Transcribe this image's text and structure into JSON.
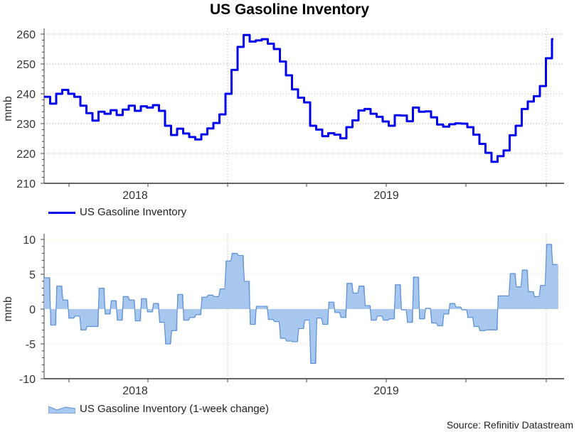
{
  "title": "US Gasoline Inventory",
  "source": "Source: Refinitiv Datastream",
  "colors": {
    "line": "#0000ee",
    "area_fill": "#a7c7ee",
    "area_stroke": "#5b8fd6",
    "grid": "#b0b0a0"
  },
  "chart_data": [
    {
      "type": "line",
      "title": "US Gasoline Inventory",
      "ylabel": "mmb",
      "xlabel": "",
      "ylim": [
        210,
        260
      ],
      "yticks": [
        "210",
        "220",
        "230",
        "240",
        "250",
        "260"
      ],
      "xtick_labels": [
        "2018",
        "2019"
      ],
      "legend": "US Gasoline Inventory",
      "legend_position": "bottom-left",
      "frequency": "weekly",
      "values": [
        239,
        236.7,
        240,
        241.3,
        240,
        239,
        236,
        233.5,
        231,
        234,
        233.3,
        234.5,
        232.9,
        234.7,
        236,
        234.3,
        235.8,
        235.4,
        236.2,
        234.3,
        229.3,
        226.2,
        228.3,
        226.7,
        225.5,
        224.7,
        226.4,
        228.4,
        230.2,
        233.1,
        240,
        248,
        255.7,
        259.7,
        257.5,
        257.9,
        258.3,
        256.8,
        255,
        250.8,
        246.2,
        241.5,
        238.7,
        237.1,
        229.3,
        228,
        225.8,
        226.8,
        226.3,
        225.1,
        228.8,
        231.1,
        234.4,
        234.9,
        233.3,
        232.3,
        230.7,
        229.3,
        232.8,
        232.7,
        230.8,
        235.4,
        234,
        234.1,
        232.1,
        229.7,
        229,
        229.8,
        230.1,
        230,
        228.8,
        226.3,
        223.2,
        220.2,
        217.2,
        219.1,
        221,
        226.1,
        229.3,
        234.9,
        237.4,
        239.2,
        242.6,
        251.9,
        258.3
      ]
    },
    {
      "type": "area",
      "title": "",
      "ylabel": "mmb",
      "xlabel": "",
      "ylim": [
        -10,
        10
      ],
      "yticks": [
        "-10",
        "-5",
        "0",
        "5",
        "10"
      ],
      "xtick_labels": [
        "2018",
        "2019"
      ],
      "legend": "US Gasoline Inventory (1-week change)",
      "legend_position": "bottom-left",
      "frequency": "weekly",
      "values": [
        4.5,
        -2.3,
        3.3,
        1.3,
        -1.3,
        -1,
        -3,
        -2.5,
        -2.5,
        3,
        -0.7,
        1.2,
        -1.6,
        1.8,
        1.3,
        -1.7,
        1.5,
        -0.4,
        0.8,
        -1.9,
        -5,
        -3.1,
        2.1,
        -1.6,
        -1.2,
        -0.8,
        1.7,
        2,
        1.8,
        2.9,
        6.9,
        8,
        7.7,
        4,
        -2.2,
        0.4,
        0.4,
        -1.5,
        -1.8,
        -4.2,
        -4.6,
        -4.7,
        -2.8,
        -1.6,
        -7.8,
        -1.3,
        -2.2,
        1,
        -0.5,
        -1.2,
        3.7,
        2.3,
        3.3,
        0.5,
        -1.6,
        -1,
        -1.6,
        -1.4,
        3.5,
        -0.1,
        -1.9,
        4.6,
        -1.4,
        0.1,
        -2,
        -2.4,
        -0.7,
        0.8,
        0.3,
        -0.1,
        -1.2,
        -2.5,
        -3.1,
        -3,
        -3,
        1.9,
        1.9,
        5.1,
        3.2,
        5.6,
        2.5,
        1.8,
        3.4,
        9.3,
        6.4
      ]
    }
  ]
}
